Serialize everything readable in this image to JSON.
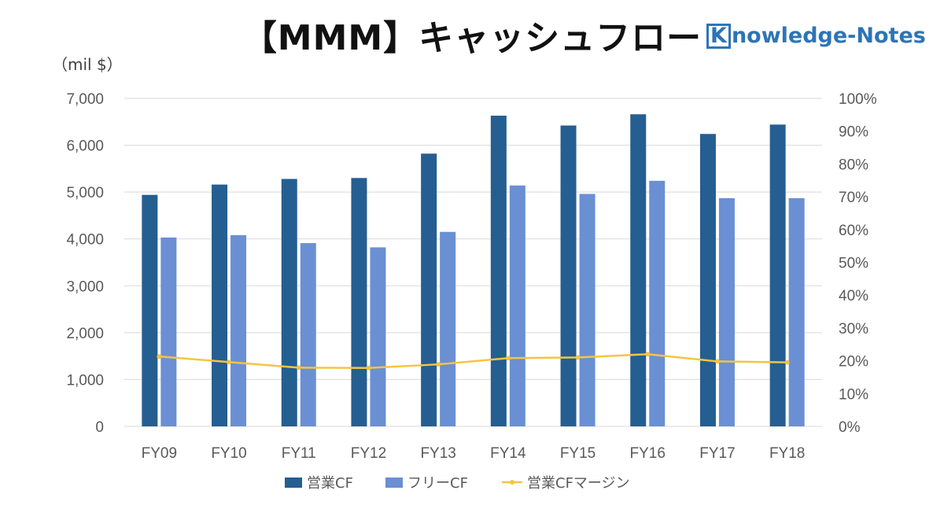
{
  "title": "【MMM】キャッシュフロー",
  "logo": {
    "letter": "K",
    "rest": "nowledge-Notes"
  },
  "unit_label": "（mil $）",
  "colors": {
    "operating_cf": "#255e91",
    "free_cf": "#6a8fd3",
    "margin": "#f4c542",
    "grid": "#d9d9d9",
    "axis_text": "#595959"
  },
  "chart_data": {
    "type": "bar",
    "categories": [
      "FY09",
      "FY10",
      "FY11",
      "FY12",
      "FY13",
      "FY14",
      "FY15",
      "FY16",
      "FY17",
      "FY18"
    ],
    "series": [
      {
        "name": "営業CF",
        "type": "bar",
        "axis": "left",
        "color": "#255e91",
        "values": [
          4940,
          5160,
          5280,
          5300,
          5820,
          6630,
          6420,
          6660,
          6240,
          6440
        ]
      },
      {
        "name": "フリーCF",
        "type": "bar",
        "axis": "left",
        "color": "#6a8fd3",
        "values": [
          4030,
          4080,
          3910,
          3820,
          4150,
          5140,
          4960,
          5240,
          4870,
          4870
        ]
      },
      {
        "name": "営業CFマージン",
        "type": "line",
        "axis": "right",
        "color": "#f4c542",
        "values": [
          0.213,
          0.196,
          0.179,
          0.178,
          0.189,
          0.208,
          0.21,
          0.22,
          0.198,
          0.195
        ]
      }
    ],
    "ylim": [
      0,
      7000
    ],
    "y_ticks": [
      "0",
      "1,000",
      "2,000",
      "3,000",
      "4,000",
      "5,000",
      "6,000",
      "7,000"
    ],
    "y2lim": [
      0,
      1
    ],
    "y2_ticks": [
      "0%",
      "10%",
      "20%",
      "30%",
      "40%",
      "50%",
      "60%",
      "70%",
      "80%",
      "90%",
      "100%"
    ],
    "grid": true,
    "legend_position": "bottom"
  }
}
